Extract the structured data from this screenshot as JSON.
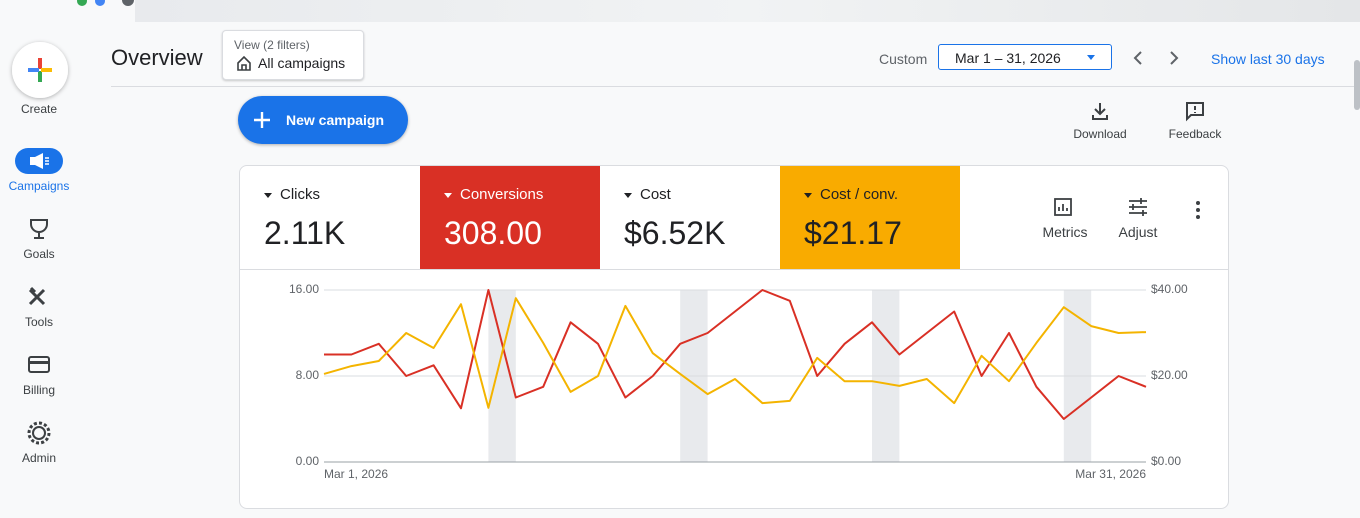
{
  "sidebar": {
    "create": "Create",
    "items": [
      "Campaigns",
      "Goals",
      "Tools",
      "Billing",
      "Admin"
    ]
  },
  "header": {
    "title": "Overview",
    "view_label": "View (2 filters)",
    "view_value": "All campaigns",
    "date_mode": "Custom",
    "date_range": "Mar 1 – 31, 2026",
    "show_last": "Show last 30 days"
  },
  "actions": {
    "new_campaign": "New campaign",
    "download": "Download",
    "feedback": "Feedback"
  },
  "scorecards": [
    {
      "label": "Clicks",
      "value": "2.11K"
    },
    {
      "label": "Conversions",
      "value": "308.00",
      "color": "#d93025"
    },
    {
      "label": "Cost",
      "value": "$6.52K"
    },
    {
      "label": "Cost / conv.",
      "value": "$21.17",
      "color": "#f9ab00"
    }
  ],
  "chart_tools": {
    "metrics": "Metrics",
    "adjust": "Adjust"
  },
  "chart_data": {
    "type": "line",
    "categories": [
      "Mar 1, 2026",
      null,
      null,
      null,
      null,
      null,
      null,
      null,
      null,
      null,
      null,
      null,
      null,
      null,
      null,
      null,
      null,
      null,
      null,
      null,
      null,
      null,
      null,
      null,
      null,
      null,
      null,
      null,
      null,
      null,
      "Mar 31, 2026"
    ],
    "series": [
      {
        "color": "#d93025",
        "values": [
          10,
          10,
          11,
          8,
          9,
          5,
          16,
          6,
          7,
          13,
          11,
          6,
          8,
          11,
          12,
          14,
          16,
          15,
          8,
          11,
          13,
          10,
          12,
          14,
          8,
          12,
          7,
          4,
          6,
          8,
          7
        ]
      },
      {
        "color": "#f4b400",
        "axis": "y2",
        "values": [
          20.5,
          22.3,
          23.5,
          30,
          26.5,
          36.7,
          12.6,
          38.1,
          27.7,
          16.3,
          20,
          36.3,
          25.3,
          20.5,
          15.8,
          19.3,
          13.7,
          14.2,
          24.2,
          18.8,
          18.8,
          17.7,
          19.3,
          13.7,
          24.7,
          18.8,
          27.7,
          36,
          31.6,
          30,
          30.2
        ]
      }
    ],
    "ylim": [
      0,
      16
    ],
    "yticks": [
      {
        "value": 0,
        "label": "0.00"
      },
      {
        "value": 8,
        "label": "8.00"
      },
      {
        "value": 16,
        "label": "16.00"
      }
    ],
    "y2lim": [
      0,
      40
    ],
    "y2ticks": [
      {
        "value": 0,
        "label": "$0.00"
      },
      {
        "value": 20,
        "label": "$20.00"
      },
      {
        "value": 40,
        "label": "$40.00"
      }
    ],
    "grid": true
  }
}
